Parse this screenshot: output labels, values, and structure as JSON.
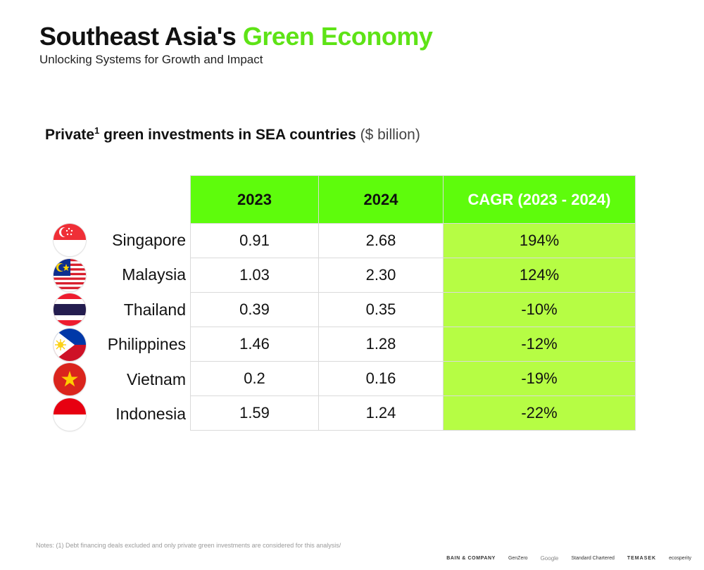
{
  "header": {
    "title_main": "Southeast Asia's",
    "title_accent": "Green Economy",
    "subtitle": "Unlocking Systems for Growth and Impact"
  },
  "table_title": {
    "text": "Private",
    "sup": "1",
    "text2": "green investments in SEA countries",
    "unit": "($ billion)"
  },
  "colors": {
    "accent": "#5ee316",
    "header_fill": "#5efc0c",
    "cagr_fill": "#b6fd44"
  },
  "table": {
    "headers": [
      "2023",
      "2024",
      "CAGR (2023 - 2024)"
    ],
    "rows": [
      {
        "country": "Singapore",
        "flag": "singapore-flag",
        "y2023": "0.91",
        "y2024": "2.68",
        "cagr": "194%"
      },
      {
        "country": "Malaysia",
        "flag": "malaysia-flag",
        "y2023": "1.03",
        "y2024": "2.30",
        "cagr": "124%"
      },
      {
        "country": "Thailand",
        "flag": "thailand-flag",
        "y2023": "0.39",
        "y2024": "0.35",
        "cagr": "-10%"
      },
      {
        "country": "Philippines",
        "flag": "philippines-flag",
        "y2023": "1.46",
        "y2024": "1.28",
        "cagr": "-12%"
      },
      {
        "country": "Vietnam",
        "flag": "vietnam-flag",
        "y2023": "0.2",
        "y2024": "0.16",
        "cagr": "-19%"
      },
      {
        "country": "Indonesia",
        "flag": "indonesia-flag",
        "y2023": "1.59",
        "y2024": "1.24",
        "cagr": "-22%"
      }
    ]
  },
  "notes": "Notes: (1) Debt financing deals excluded and only private green investments are considered for this analysis/",
  "footer_logos": [
    "BAIN & COMPANY",
    "GenZero",
    "Google",
    "Standard Chartered",
    "TEMASEK",
    "ecosperity"
  ]
}
